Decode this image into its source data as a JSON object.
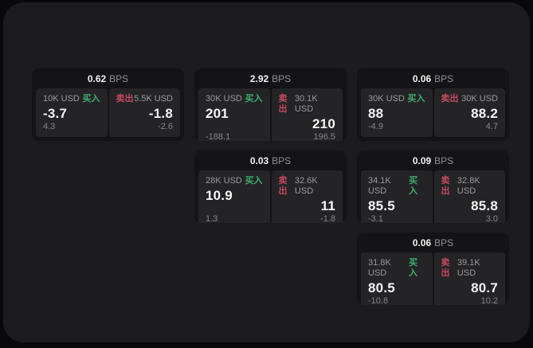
{
  "labels": {
    "bps_unit": "BPS",
    "buy": "买入",
    "sell": "卖出"
  },
  "colors": {
    "background": "#09090b",
    "window": "#1c1c1e",
    "card": "#141416",
    "panel": "#242427",
    "accent_green": "#3eaf6e",
    "accent_red": "#c44a5e",
    "text_primary": "#f5f5f5",
    "text_muted": "#9a9a9a"
  },
  "cards": [
    {
      "row": 1,
      "col": 1,
      "bps": "0.62",
      "buy": {
        "amount": "10K USD",
        "price": "-3.7",
        "delta": "4.3"
      },
      "sell": {
        "amount": "5.5K USD",
        "price": "-1.8",
        "delta": "-2.6"
      }
    },
    {
      "row": 1,
      "col": 2,
      "bps": "2.92",
      "buy": {
        "amount": "30K USD",
        "price": "201",
        "delta": "-188.1"
      },
      "sell": {
        "amount": "30.1K USD",
        "price": "210",
        "delta": "196.5"
      }
    },
    {
      "row": 1,
      "col": 3,
      "bps": "0.06",
      "buy": {
        "amount": "30K USD",
        "price": "88",
        "delta": "-4.9"
      },
      "sell": {
        "amount": "30K USD",
        "price": "88.2",
        "delta": "4.7"
      }
    },
    {
      "row": 2,
      "col": 2,
      "bps": "0.03",
      "buy": {
        "amount": "28K USD",
        "price": "10.9",
        "delta": "1.3"
      },
      "sell": {
        "amount": "32.6K USD",
        "price": "11",
        "delta": "-1.8"
      }
    },
    {
      "row": 2,
      "col": 3,
      "bps": "0.09",
      "buy": {
        "amount": "34.1K USD",
        "price": "85.5",
        "delta": "-3.1"
      },
      "sell": {
        "amount": "32.8K USD",
        "price": "85.8",
        "delta": "3.0"
      }
    },
    {
      "row": 3,
      "col": 3,
      "bps": "0.06",
      "buy": {
        "amount": "31.8K USD",
        "price": "80.5",
        "delta": "-10.8"
      },
      "sell": {
        "amount": "39.1K USD",
        "price": "80.7",
        "delta": "10.2"
      }
    }
  ]
}
